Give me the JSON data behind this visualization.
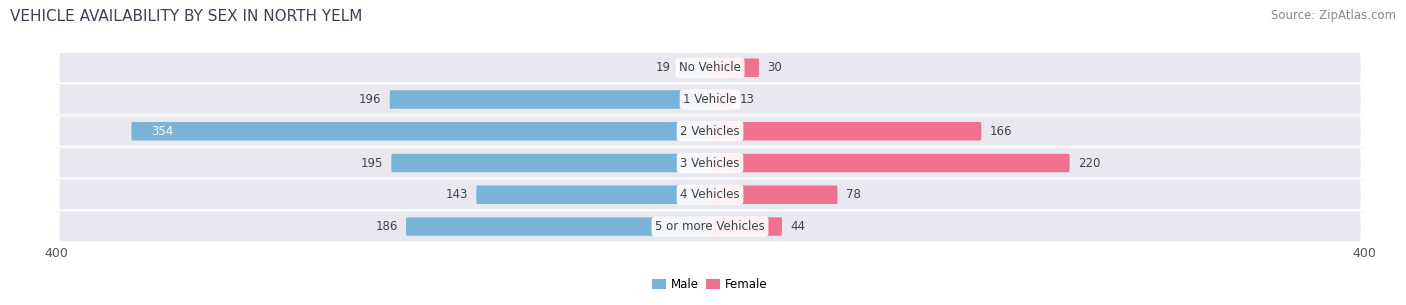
{
  "title": "VEHICLE AVAILABILITY BY SEX IN NORTH YELM",
  "source": "Source: ZipAtlas.com",
  "categories": [
    "No Vehicle",
    "1 Vehicle",
    "2 Vehicles",
    "3 Vehicles",
    "4 Vehicles",
    "5 or more Vehicles"
  ],
  "male_values": [
    19,
    196,
    354,
    195,
    143,
    186
  ],
  "female_values": [
    30,
    13,
    166,
    220,
    78,
    44
  ],
  "male_color": "#7ab3d8",
  "female_color": "#f07090",
  "male_color_light": "#b0cfe8",
  "female_color_light": "#f4a0b8",
  "axis_max": 400,
  "background_color": "#ffffff",
  "row_bg_color": "#e8e8f0",
  "row_bg_color2": "#ededf5",
  "title_fontsize": 11,
  "source_fontsize": 8.5,
  "label_fontsize": 8.5,
  "value_fontsize": 8.5,
  "tick_fontsize": 9
}
